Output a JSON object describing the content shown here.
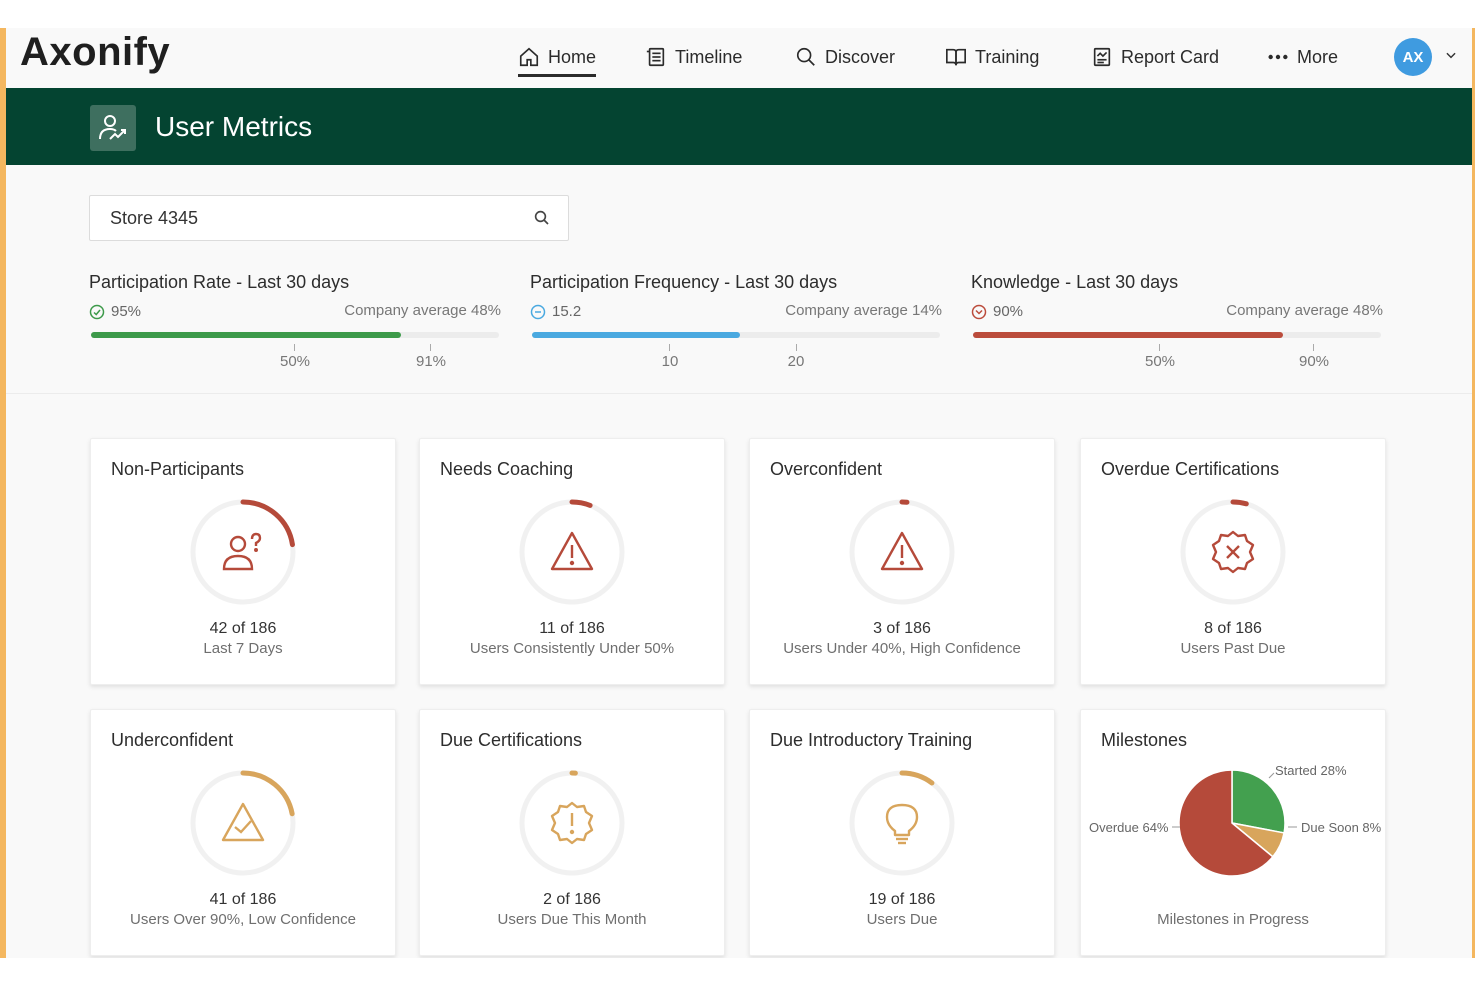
{
  "brand": {
    "name": "Axonify"
  },
  "nav": {
    "items": [
      {
        "label": "Home",
        "icon": "home-icon",
        "active": true
      },
      {
        "label": "Timeline",
        "icon": "timeline-icon"
      },
      {
        "label": "Discover",
        "icon": "search-icon"
      },
      {
        "label": "Training",
        "icon": "book-icon"
      },
      {
        "label": "Report Card",
        "icon": "report-card-icon"
      },
      {
        "label": "More",
        "icon": "more-dots-icon"
      }
    ],
    "avatar_initials": "AX"
  },
  "page": {
    "title": "User Metrics",
    "icon": "user-metrics-icon"
  },
  "search": {
    "value": "Store 4345"
  },
  "metrics": [
    {
      "title": "Participation Rate - Last 30 days",
      "value": "95%",
      "value_icon": "check-circle-icon",
      "company_avg": "Company average 48%",
      "fill_fraction": 0.76,
      "color": "#3d9a4a",
      "ticks": [
        "50%",
        "91%"
      ]
    },
    {
      "title": "Participation Frequency - Last 30 days",
      "value": "15.2",
      "value_icon": "minus-circle-icon",
      "company_avg": "Company average 14%",
      "fill_fraction": 0.51,
      "color": "#4aa9e0",
      "ticks": [
        "10",
        "20"
      ]
    },
    {
      "title": "Knowledge - Last 30 days",
      "value": "90%",
      "value_icon": "chevron-circle-icon",
      "company_avg": "Company average 48%",
      "fill_fraction": 0.76,
      "color": "#bb4c3c",
      "ticks": [
        "50%",
        "90%"
      ]
    }
  ],
  "cards": [
    {
      "title": "Non-Participants",
      "count": "42 of 186",
      "subtitle": "Last 7 Days",
      "icon": "user-question-icon",
      "fraction": 0.226,
      "color": "#b54a3a"
    },
    {
      "title": "Needs Coaching",
      "count": "11 of 186",
      "subtitle": "Users Consistently Under 50%",
      "icon": "warning-triangle-icon",
      "fraction": 0.059,
      "color": "#b54a3a"
    },
    {
      "title": "Overconfident",
      "count": "3 of 186",
      "subtitle": "Users Under 40%, High Confidence",
      "icon": "warning-triangle-icon",
      "fraction": 0.016,
      "color": "#b54a3a"
    },
    {
      "title": "Overdue Certifications",
      "count": "8 of 186",
      "subtitle": "Users Past Due",
      "icon": "badge-x-icon",
      "fraction": 0.043,
      "color": "#b54a3a"
    },
    {
      "title": "Underconfident",
      "count": "41 of 186",
      "subtitle": "Users Over 90%, Low Confidence",
      "icon": "triangle-check-icon",
      "fraction": 0.22,
      "color": "#d8a55c"
    },
    {
      "title": "Due Certifications",
      "count": "2 of 186",
      "subtitle": "Users Due This Month",
      "icon": "badge-alert-icon",
      "fraction": 0.011,
      "color": "#d8a55c"
    },
    {
      "title": "Due Introductory Training",
      "count": "19 of 186",
      "subtitle": "Users Due",
      "icon": "lightbulb-icon",
      "fraction": 0.102,
      "color": "#d8a55c"
    }
  ],
  "milestones": {
    "title": "Milestones",
    "caption": "Milestones in Progress",
    "chart_data": {
      "type": "pie",
      "slices": [
        {
          "label": "Started 28%",
          "value": 28,
          "color": "#43a04f"
        },
        {
          "label": "Due Soon 8%",
          "value": 8,
          "color": "#d8a55c"
        },
        {
          "label": "Overdue 64%",
          "value": 64,
          "color": "#b54a3a"
        }
      ]
    }
  }
}
